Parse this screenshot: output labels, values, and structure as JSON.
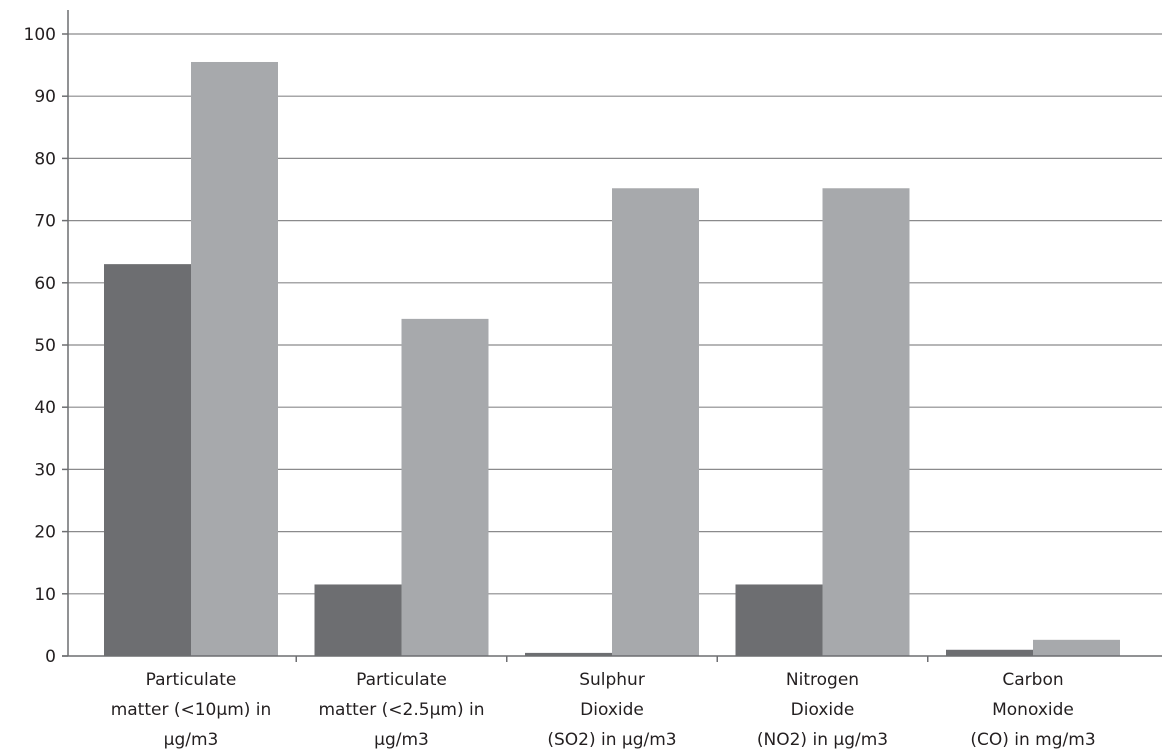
{
  "chart_data": {
    "type": "bar",
    "categories": [
      [
        "Particulate",
        "matter (<10μm) in",
        "μg/m3"
      ],
      [
        "Particulate",
        "matter (<2.5μm) in",
        "μg/m3"
      ],
      [
        "Sulphur",
        "Dioxide",
        "(SO2) in μg/m3"
      ],
      [
        "Nitrogen",
        "Dioxide",
        "(NO2) in μg/m3"
      ],
      [
        "Carbon",
        "Monoxide",
        "(CO) in mg/m3"
      ]
    ],
    "series": [
      {
        "values": [
          63,
          11.5,
          0.5,
          11.5,
          1
        ],
        "color": "#6d6e71"
      },
      {
        "values": [
          95.5,
          54.2,
          75.2,
          75.2,
          2.6
        ],
        "color": "#a7a9ac"
      }
    ],
    "yticks": [
      0,
      10,
      20,
      30,
      40,
      50,
      60,
      70,
      80,
      90,
      100
    ],
    "ylim": [
      0,
      100
    ],
    "grid": true
  }
}
